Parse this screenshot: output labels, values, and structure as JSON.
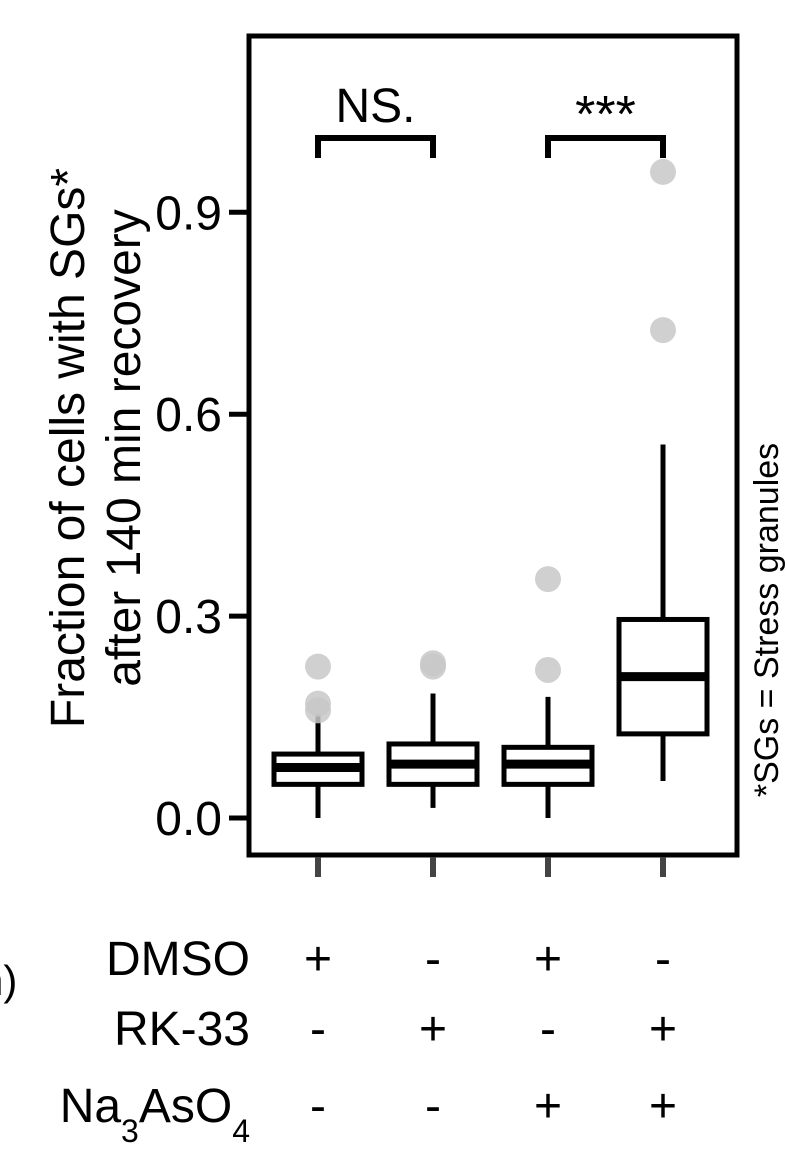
{
  "chart_data": {
    "type": "box",
    "title": "",
    "ylabel_line1": "Fraction of cells with SGs*",
    "ylabel_line2": "after 140 min recovery",
    "ylim": [
      -0.06,
      1.16
    ],
    "yticks": [
      {
        "value": 0.0,
        "label": "0.0"
      },
      {
        "value": 0.3,
        "label": "0.3"
      },
      {
        "value": 0.6,
        "label": "0.6"
      },
      {
        "value": 0.9,
        "label": "0.9"
      }
    ],
    "boxes": [
      {
        "q1": 0.05,
        "median": 0.075,
        "q3": 0.095,
        "whisker_low": 0.0,
        "whisker_high": 0.155,
        "outliers": [
          0.16,
          0.17,
          0.225
        ]
      },
      {
        "q1": 0.05,
        "median": 0.08,
        "q3": 0.11,
        "whisker_low": 0.015,
        "whisker_high": 0.185,
        "outliers": [
          0.225,
          0.23
        ]
      },
      {
        "q1": 0.05,
        "median": 0.08,
        "q3": 0.105,
        "whisker_low": 0.0,
        "whisker_high": 0.18,
        "outliers": [
          0.22,
          0.355
        ]
      },
      {
        "q1": 0.125,
        "median": 0.21,
        "q3": 0.295,
        "whisker_low": 0.055,
        "whisker_high": 0.555,
        "outliers": [
          0.725,
          0.96
        ]
      }
    ],
    "comparisons": [
      {
        "from": 0,
        "to": 1,
        "label": "NS."
      },
      {
        "from": 2,
        "to": 3,
        "label": "***"
      }
    ],
    "side_note": "*SGs = Stress granules",
    "conditions": [
      {
        "label": "DMSO",
        "values": [
          "+",
          "-",
          "+",
          "-"
        ]
      },
      {
        "label": "RK-33",
        "values": [
          "-",
          "+",
          "-",
          "+"
        ]
      },
      {
        "label_main": "Na",
        "sub1": "3",
        "label_mid": "AsO",
        "sub2": "4",
        "values": [
          "-",
          "-",
          "+",
          "+"
        ]
      }
    ],
    "clipped_text": "n)",
    "colors": {
      "outlier": "#c8c8c8",
      "stroke": "#000000"
    }
  }
}
